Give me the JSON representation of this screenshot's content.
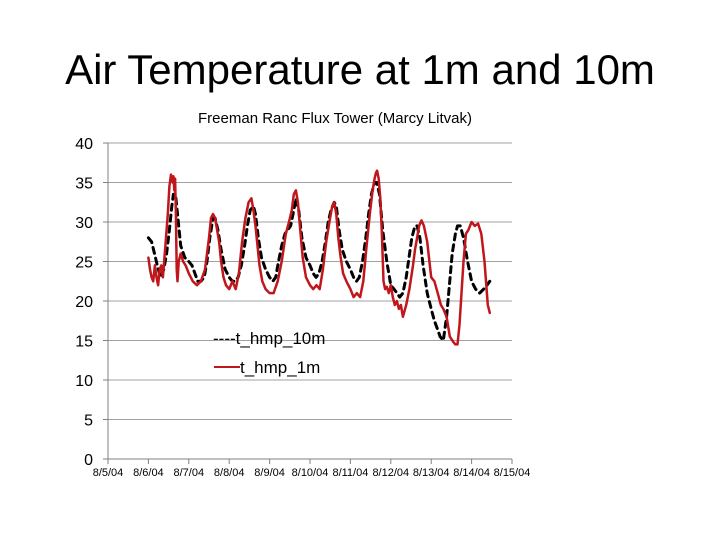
{
  "slide": {
    "title": "Air Temperature at 1m and 10m"
  },
  "chart_data": {
    "type": "line",
    "title": "Freeman Ranc Flux Tower (Marcy Litvak)",
    "xlabel": "",
    "ylabel": "",
    "x_ticks": [
      "8/5/04",
      "8/6/04",
      "8/7/04",
      "8/8/04",
      "8/9/04",
      "8/10/04",
      "8/11/04",
      "8/12/04",
      "8/13/04",
      "8/14/04",
      "8/15/04"
    ],
    "xlim": [
      "8/5/04",
      "8/15/04"
    ],
    "y_ticks": [
      0,
      5,
      10,
      15,
      20,
      25,
      30,
      35,
      40
    ],
    "ylim": [
      0,
      40
    ],
    "grid": "horizontal",
    "legend_position": "center-left",
    "series": [
      {
        "name": "----t_hmp_10m",
        "color": "#000000",
        "style": "dashed",
        "x": [
          6.0,
          6.08,
          6.15,
          6.22,
          6.3,
          6.38,
          6.45,
          6.52,
          6.58,
          6.62,
          6.67,
          6.72,
          6.8,
          6.9,
          7.0,
          7.08,
          7.15,
          7.22,
          7.3,
          7.38,
          7.45,
          7.52,
          7.6,
          7.65,
          7.72,
          7.8,
          7.9,
          8.0,
          8.08,
          8.15,
          8.22,
          8.3,
          8.38,
          8.45,
          8.52,
          8.6,
          8.65,
          8.72,
          8.8,
          8.9,
          9.0,
          9.08,
          9.15,
          9.22,
          9.3,
          9.38,
          9.45,
          9.52,
          9.6,
          9.65,
          9.72,
          9.8,
          9.9,
          10.0,
          10.08,
          10.15,
          10.22,
          10.3,
          10.38,
          10.45,
          10.52,
          10.6,
          10.65,
          10.72,
          10.8,
          10.9,
          11.0,
          11.08,
          11.15,
          11.22,
          11.3,
          11.38,
          11.45,
          11.52,
          11.6,
          11.65,
          11.72,
          11.8,
          11.9,
          12.0,
          12.08,
          12.15,
          12.22,
          12.3,
          12.38,
          12.45,
          12.52,
          12.6,
          12.65,
          12.72,
          12.8,
          12.9,
          13.0,
          13.08,
          13.15,
          13.22,
          13.3,
          13.38,
          13.45,
          13.52,
          13.6,
          13.65,
          13.72,
          13.8,
          13.9,
          14.0,
          14.1,
          14.2,
          14.3,
          14.38,
          14.45
        ],
        "values": [
          28,
          27.5,
          26,
          24.5,
          23,
          24,
          26,
          29,
          32,
          33.5,
          33.5,
          31,
          27,
          25.5,
          25,
          24.5,
          23.5,
          22.5,
          22.5,
          23,
          25,
          28,
          30.5,
          30.5,
          29,
          26.5,
          24,
          23,
          22.5,
          22.5,
          23,
          24.5,
          27,
          29.5,
          31.5,
          32,
          31,
          28,
          25.5,
          24,
          23,
          22.5,
          23,
          25,
          27,
          28.5,
          29,
          29.5,
          31.5,
          33,
          31.5,
          28,
          25.5,
          24.5,
          23.5,
          23,
          23.5,
          25,
          27.5,
          30,
          31.5,
          32.5,
          32,
          29,
          26.5,
          25,
          24,
          23,
          22.5,
          23,
          25,
          28,
          31,
          33.5,
          35,
          35,
          33.5,
          29,
          25,
          22,
          21.5,
          21,
          20.5,
          21,
          23,
          25.5,
          28,
          29.5,
          29.5,
          28,
          24.5,
          21,
          19,
          17.5,
          16.5,
          15.5,
          15,
          18,
          22,
          26,
          28.5,
          29.5,
          29.5,
          28,
          25,
          22.5,
          21.5,
          21,
          21.5,
          22,
          22.5
        ]
      },
      {
        "name": "t_hmp_1m",
        "color": "#c0171d",
        "style": "solid",
        "x": [
          6.0,
          6.04,
          6.08,
          6.12,
          6.16,
          6.2,
          6.24,
          6.28,
          6.32,
          6.36,
          6.42,
          6.48,
          6.52,
          6.56,
          6.6,
          6.62,
          6.64,
          6.66,
          6.68,
          6.7,
          6.72,
          6.75,
          6.8,
          6.86,
          6.92,
          7.0,
          7.1,
          7.2,
          7.3,
          7.4,
          7.5,
          7.55,
          7.6,
          7.65,
          7.7,
          7.75,
          7.8,
          7.86,
          7.92,
          8.0,
          8.08,
          8.16,
          8.24,
          8.32,
          8.4,
          8.48,
          8.55,
          8.6,
          8.65,
          8.7,
          8.75,
          8.82,
          8.9,
          9.0,
          9.1,
          9.2,
          9.3,
          9.4,
          9.48,
          9.55,
          9.6,
          9.65,
          9.7,
          9.75,
          9.82,
          9.9,
          10.0,
          10.08,
          10.16,
          10.24,
          10.32,
          10.4,
          10.48,
          10.55,
          10.6,
          10.65,
          10.7,
          10.76,
          10.82,
          10.9,
          11.0,
          11.08,
          11.16,
          11.24,
          11.32,
          11.4,
          11.48,
          11.55,
          11.6,
          11.63,
          11.66,
          11.7,
          11.74,
          11.78,
          11.82,
          11.86,
          11.9,
          11.95,
          12.0,
          12.05,
          12.1,
          12.15,
          12.2,
          12.25,
          12.3,
          12.38,
          12.46,
          12.55,
          12.6,
          12.65,
          12.7,
          12.76,
          12.82,
          12.9,
          13.0,
          13.08,
          13.16,
          13.24,
          13.3,
          13.38,
          13.46,
          13.55,
          13.6,
          13.65,
          13.7,
          13.75,
          13.8,
          13.86,
          13.92,
          14.0,
          14.08,
          14.16,
          14.24,
          14.32,
          14.4,
          14.45
        ],
        "values": [
          25.5,
          24,
          23,
          22.5,
          24.5,
          23,
          22,
          24,
          24.5,
          23,
          27,
          31,
          34.5,
          36,
          35,
          35.8,
          34,
          35.5,
          31,
          24,
          22.5,
          25,
          26,
          25,
          24.5,
          23.5,
          22.5,
          22,
          22.5,
          24,
          28,
          30.5,
          31,
          30.5,
          29,
          27.5,
          25,
          23,
          22,
          21.5,
          22.5,
          21.5,
          23.5,
          27.5,
          30.5,
          32.5,
          33,
          31.5,
          29.5,
          27,
          24.5,
          22.5,
          21.5,
          21,
          21,
          22.5,
          25,
          28.5,
          30,
          31.5,
          33.5,
          34,
          32.5,
          29.5,
          25.5,
          23,
          22,
          21.5,
          22,
          21.5,
          24,
          27.5,
          30,
          32,
          32.5,
          31,
          28,
          25.5,
          23.5,
          22.5,
          21.5,
          20.5,
          21,
          20.5,
          22.5,
          27,
          31,
          34,
          35.5,
          36.2,
          36.5,
          35.5,
          33,
          28.5,
          22.5,
          21.5,
          21.8,
          21,
          22,
          20.5,
          19.5,
          20,
          19,
          19.5,
          18,
          19.5,
          21.5,
          24.5,
          26.5,
          28,
          29.5,
          30.2,
          29.5,
          27.5,
          23,
          22.5,
          21,
          19.5,
          19,
          18,
          15.5,
          14.8,
          14.5,
          14.5,
          17,
          21,
          25,
          28.5,
          29,
          30,
          29.5,
          29.8,
          28.5,
          25,
          19.5,
          18.5
        ]
      }
    ]
  }
}
